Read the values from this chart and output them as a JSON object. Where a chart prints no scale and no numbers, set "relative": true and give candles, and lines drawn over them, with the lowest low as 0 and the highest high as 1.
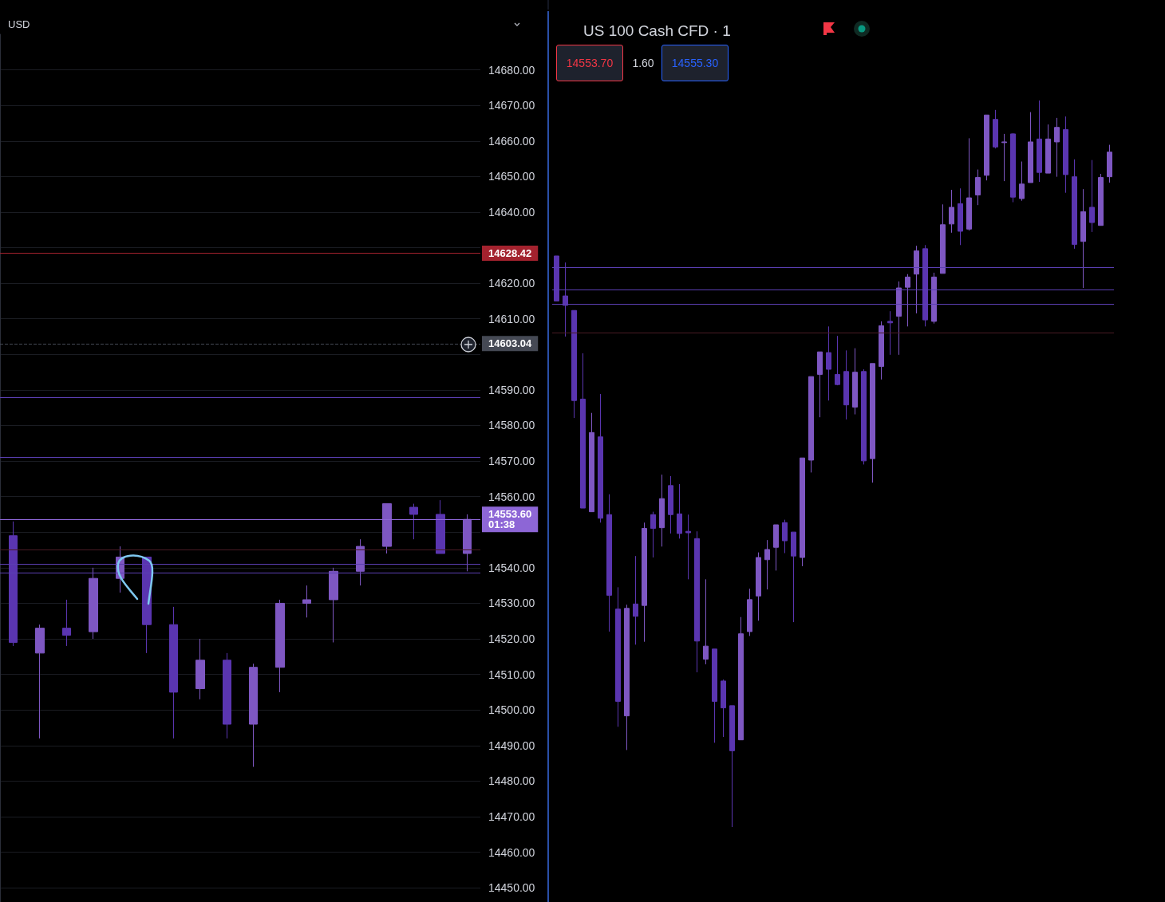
{
  "chart_data": [
    {
      "type": "candlestick",
      "ylabel": "USD",
      "categories": [
        null,
        null,
        null,
        null,
        null,
        null,
        null,
        null,
        null,
        null,
        null,
        null,
        null,
        null,
        null,
        null,
        null,
        null
      ],
      "ohlc": [
        [
          14549,
          14553,
          14518,
          14519
        ],
        [
          14516,
          14524,
          14492,
          14523
        ],
        [
          14523,
          14531,
          14518,
          14521
        ],
        [
          14522,
          14540,
          14520,
          14537
        ],
        [
          14537,
          14546,
          14533,
          14543
        ],
        [
          14543,
          14543,
          14516,
          14524
        ],
        [
          14524,
          14529,
          14492,
          14505
        ],
        [
          14506,
          14520,
          14503,
          14514
        ],
        [
          14514,
          14516,
          14492,
          14496
        ],
        [
          14496,
          14513,
          14484,
          14512
        ],
        [
          14512,
          14531,
          14505,
          14530
        ],
        [
          14530,
          14535,
          14526,
          14531
        ],
        [
          14531,
          14540,
          14519,
          14539
        ],
        [
          14539,
          14548,
          14535,
          14546
        ],
        [
          14546,
          14558,
          14544,
          14558
        ],
        [
          14557,
          14558,
          14548,
          14555
        ],
        [
          14555,
          14559,
          14544,
          14544
        ],
        [
          14544,
          14555,
          14539,
          14553.6
        ]
      ],
      "colors": [
        "#5a35b0",
        "#7e57c2",
        "#5a35b0",
        "#7e57c2",
        "#7e57c2",
        "#5a35b0",
        "#5a35b0",
        "#7e57c2",
        "#5a35b0",
        "#7e57c2",
        "#7e57c2",
        "#7e57c2",
        "#7e57c2",
        "#7e57c2",
        "#7e57c2",
        "#5a35b0",
        "#5a35b0",
        "#7e57c2"
      ],
      "ylim": [
        14446,
        14690
      ],
      "yticks": [
        {
          "value": 14450,
          "label": "14450.00"
        },
        {
          "value": 14460,
          "label": "14460.00"
        },
        {
          "value": 14470,
          "label": "14470.00"
        },
        {
          "value": 14480,
          "label": "14480.00"
        },
        {
          "value": 14490,
          "label": "14490.00"
        },
        {
          "value": 14500,
          "label": "14500.00"
        },
        {
          "value": 14510,
          "label": "14510.00"
        },
        {
          "value": 14520,
          "label": "14520.00"
        },
        {
          "value": 14530,
          "label": "14530.00"
        },
        {
          "value": 14540,
          "label": "14540.00"
        },
        {
          "value": 14550,
          "label": null
        },
        {
          "value": 14560,
          "label": "14560.00"
        },
        {
          "value": 14570,
          "label": "14570.00"
        },
        {
          "value": 14580,
          "label": "14580.00"
        },
        {
          "value": 14590,
          "label": "14590.00"
        },
        {
          "value": 14600,
          "label": null
        },
        {
          "value": 14610,
          "label": "14610.00"
        },
        {
          "value": 14620,
          "label": "14620.00"
        },
        {
          "value": 14630,
          "label": null
        },
        {
          "value": 14640,
          "label": "14640.00"
        },
        {
          "value": 14650,
          "label": "14650.00"
        },
        {
          "value": 14660,
          "label": "14660.00"
        },
        {
          "value": 14670,
          "label": "14670.00"
        },
        {
          "value": 14680,
          "label": "14680.00"
        }
      ],
      "grid": "y",
      "tick_labels": "y",
      "ref_lines": [
        {
          "axis": "y",
          "value": 14628.42,
          "label": "14628.42",
          "color": "#a3222e"
        },
        {
          "axis": "y",
          "value": 14603.04,
          "label": "14603.04",
          "color": "#454954",
          "line_style": "dashed"
        },
        {
          "axis": "y",
          "value": 14588,
          "color": "#5b3fb3"
        },
        {
          "axis": "y",
          "value": 14571,
          "color": "#5b3fb3"
        },
        {
          "axis": "y",
          "value": 14553.6,
          "label": "14553.60\n01:38",
          "color": "#8d66d6"
        },
        {
          "axis": "y",
          "value": 14545,
          "color": "#4a1a24"
        },
        {
          "axis": "y",
          "value": 14541,
          "color": "#5b3fb3"
        },
        {
          "axis": "y",
          "value": 14538.6,
          "color": "#5b3fb3"
        }
      ]
    },
    {
      "type": "candlestick",
      "title": "US 100 Cash CFD · 1",
      "relative": true,
      "categories": [
        null,
        null,
        null,
        null,
        null,
        null,
        null,
        null,
        null,
        null,
        null,
        null,
        null,
        null,
        null,
        null,
        null,
        null,
        null,
        null,
        null,
        null,
        null,
        null,
        null,
        null,
        null,
        null,
        null,
        null,
        null,
        null,
        null,
        null,
        null,
        null,
        null,
        null,
        null,
        null,
        null,
        null,
        null,
        null,
        null,
        null,
        null,
        null,
        null,
        null,
        null,
        null,
        null,
        null,
        null,
        null,
        null,
        null,
        null,
        null,
        null,
        null,
        null,
        null
      ],
      "ohlc": [
        [
          0.786,
          0.786,
          0.724,
          0.724
        ],
        [
          0.731,
          0.777,
          0.675,
          0.718
        ],
        [
          0.711,
          0.711,
          0.563,
          0.587
        ],
        [
          0.589,
          0.652,
          0.439,
          0.439
        ],
        [
          0.434,
          0.57,
          0.434,
          0.543
        ],
        [
          0.537,
          0.596,
          0.419,
          0.425
        ],
        [
          0.43,
          0.458,
          0.269,
          0.319
        ],
        [
          0.3,
          0.33,
          0.138,
          0.173
        ],
        [
          0.153,
          0.306,
          0.106,
          0.301
        ],
        [
          0.307,
          0.373,
          0.251,
          0.29
        ],
        [
          0.305,
          0.419,
          0.255,
          0.411
        ],
        [
          0.43,
          0.434,
          0.371,
          0.411
        ],
        [
          0.412,
          0.485,
          0.386,
          0.452
        ],
        [
          0.47,
          0.483,
          0.404,
          0.43
        ],
        [
          0.431,
          0.472,
          0.397,
          0.404
        ],
        [
          0.407,
          0.43,
          0.341,
          0.405
        ],
        [
          0.397,
          0.407,
          0.213,
          0.256
        ],
        [
          0.231,
          0.341,
          0.224,
          0.249
        ],
        [
          0.245,
          0.245,
          0.116,
          0.173
        ],
        [
          0.201,
          0.203,
          0.124,
          0.164
        ],
        [
          0.167,
          0.167,
          0,
          0.105
        ],
        [
          0.12,
          0.289,
          0.12,
          0.266
        ],
        [
          0.269,
          0.328,
          0.263,
          0.313
        ],
        [
          0.318,
          0.378,
          0.284,
          0.371
        ],
        [
          0.368,
          0.395,
          0.327,
          0.382
        ],
        [
          0.385,
          0.416,
          0.353,
          0.416
        ],
        [
          0.419,
          0.423,
          0.377,
          0.394
        ],
        [
          0.406,
          0.406,
          0.282,
          0.373
        ],
        [
          0.371,
          0.508,
          0.359,
          0.508
        ],
        [
          0.505,
          0.62,
          0.488,
          0.62
        ],
        [
          0.623,
          0.654,
          0.564,
          0.654
        ],
        [
          0.653,
          0.689,
          0.587,
          0.63
        ],
        [
          0.623,
          0.676,
          0.608,
          0.609
        ],
        [
          0.627,
          0.656,
          0.561,
          0.581
        ],
        [
          0.578,
          0.659,
          0.568,
          0.626
        ],
        [
          0.627,
          0.63,
          0.499,
          0.504
        ],
        [
          0.507,
          0.638,
          0.474,
          0.638
        ],
        [
          0.634,
          0.696,
          0.616,
          0.69
        ],
        [
          0.696,
          0.71,
          0.65,
          0.694
        ],
        [
          0.703,
          0.751,
          0.65,
          0.742
        ],
        [
          0.743,
          0.761,
          0.689,
          0.757
        ],
        [
          0.761,
          0.8,
          0.707,
          0.793
        ],
        [
          0.796,
          0.801,
          0.689,
          0.698
        ],
        [
          0.696,
          0.763,
          0.693,
          0.757
        ],
        [
          0.762,
          0.857,
          0.762,
          0.829
        ],
        [
          0.83,
          0.877,
          0.818,
          0.853
        ],
        [
          0.858,
          0.879,
          0.801,
          0.82
        ],
        [
          0.823,
          0.948,
          0.821,
          0.866
        ],
        [
          0.87,
          0.905,
          0.856,
          0.894
        ],
        [
          0.897,
          0.98,
          0.89,
          0.98
        ],
        [
          0.974,
          0.987,
          0.934,
          0.936
        ],
        [
          0.942,
          0.954,
          0.889,
          0.943
        ],
        [
          0.954,
          0.955,
          0.86,
          0.867
        ],
        [
          0.865,
          0.916,
          0.862,
          0.885
        ],
        [
          0.887,
          0.984,
          0.887,
          0.943
        ],
        [
          0.947,
          1,
          0.888,
          0.901
        ],
        [
          0.9,
          0.967,
          0.9,
          0.947
        ],
        [
          0.943,
          0.976,
          0.895,
          0.963
        ],
        [
          0.96,
          0.978,
          0.873,
          0.898
        ],
        [
          0.895,
          0.919,
          0.796,
          0.802
        ],
        [
          0.806,
          0.878,
          0.742,
          0.847
        ],
        [
          0.853,
          0.918,
          0.819,
          0.832
        ],
        [
          0.828,
          0.899,
          0.828,
          0.894
        ],
        [
          0.895,
          0.939,
          0.887,
          0.929
        ]
      ],
      "colors": [
        "#5a35b0",
        "#5a35b0",
        "#5a35b0",
        "#5a35b0",
        "#7e57c2",
        "#5a35b0",
        "#5a35b0",
        "#5a35b0",
        "#7e57c2",
        "#5a35b0",
        "#7e57c2",
        "#5a35b0",
        "#7e57c2",
        "#5a35b0",
        "#5a35b0",
        "#5a35b0",
        "#5a35b0",
        "#7e57c2",
        "#5a35b0",
        "#5a35b0",
        "#5a35b0",
        "#7e57c2",
        "#7e57c2",
        "#7e57c2",
        "#7e57c2",
        "#7e57c2",
        "#5a35b0",
        "#5a35b0",
        "#7e57c2",
        "#7e57c2",
        "#7e57c2",
        "#5a35b0",
        "#5a35b0",
        "#5a35b0",
        "#7e57c2",
        "#5a35b0",
        "#7e57c2",
        "#7e57c2",
        "#5a35b0",
        "#7e57c2",
        "#7e57c2",
        "#7e57c2",
        "#5a35b0",
        "#7e57c2",
        "#7e57c2",
        "#7e57c2",
        "#5a35b0",
        "#7e57c2",
        "#7e57c2",
        "#7e57c2",
        "#5a35b0",
        "#7e57c2",
        "#5a35b0",
        "#7e57c2",
        "#7e57c2",
        "#5a35b0",
        "#7e57c2",
        "#7e57c2",
        "#5a35b0",
        "#5a35b0",
        "#7e57c2",
        "#5a35b0",
        "#7e57c2",
        "#7e57c2"
      ],
      "ref_lines": [
        {
          "axis": "y",
          "value": 0.77,
          "color": "#5b3fb3"
        },
        {
          "axis": "y",
          "value": 0.742,
          "color": "#5b3fb3"
        },
        {
          "axis": "y",
          "value": 0.718,
          "color": "#5b3fb3"
        },
        {
          "axis": "y",
          "value": 0.683,
          "color": "#4a1a24"
        }
      ],
      "annotations": [
        "14553.70",
        "1.60",
        "14555.30"
      ]
    }
  ]
}
